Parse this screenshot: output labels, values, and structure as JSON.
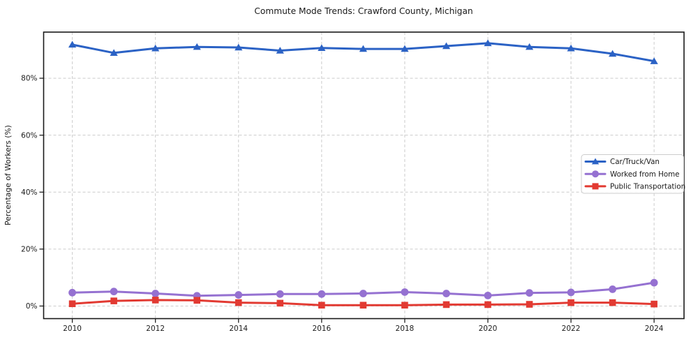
{
  "chart_data": {
    "type": "line",
    "title": "Commute Mode Trends: Crawford County, Michigan",
    "xlabel": "",
    "ylabel": "Percentage of Workers (%)",
    "x": [
      2010,
      2011,
      2012,
      2013,
      2014,
      2015,
      2016,
      2017,
      2018,
      2019,
      2020,
      2021,
      2022,
      2023,
      2024
    ],
    "series": [
      {
        "name": "Car/Truck/Van",
        "color": "#2b62c5",
        "marker": "triangle",
        "values": [
          91.8,
          88.9,
          90.5,
          91.0,
          90.8,
          89.7,
          90.6,
          90.3,
          90.3,
          91.3,
          92.3,
          91.0,
          90.5,
          88.6,
          86.0
        ]
      },
      {
        "name": "Worked from Home",
        "color": "#9571d1",
        "marker": "circle",
        "values": [
          4.7,
          5.1,
          4.4,
          3.6,
          3.9,
          4.2,
          4.2,
          4.4,
          4.9,
          4.4,
          3.7,
          4.6,
          4.8,
          5.9,
          8.2
        ]
      },
      {
        "name": "Public Transportation",
        "color": "#e23a32",
        "marker": "square",
        "values": [
          0.8,
          1.8,
          2.1,
          2.0,
          1.2,
          1.0,
          0.3,
          0.3,
          0.3,
          0.5,
          0.5,
          0.6,
          1.2,
          1.2,
          0.7
        ]
      }
    ],
    "x_tick_labels": [
      "2010",
      "2012",
      "2014",
      "2016",
      "2018",
      "2020",
      "2022",
      "2024"
    ],
    "x_tick_values": [
      2010,
      2012,
      2014,
      2016,
      2018,
      2020,
      2022,
      2024
    ],
    "y_tick_labels": [
      "0%",
      "20%",
      "40%",
      "60%",
      "80%"
    ],
    "y_tick_values": [
      0,
      20,
      40,
      60,
      80
    ],
    "xlim": [
      2009.31,
      2024.72
    ],
    "ylim": [
      -4.42,
      96.2
    ],
    "grid": true,
    "grid_color": "#cccccc",
    "legend_position": "center right"
  }
}
